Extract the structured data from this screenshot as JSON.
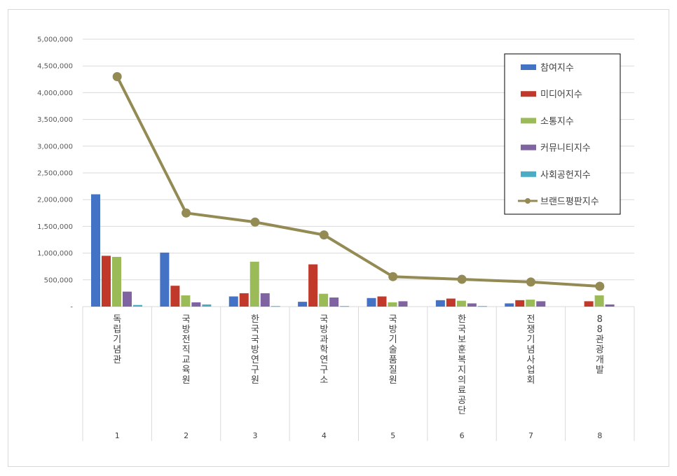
{
  "chart_data": {
    "type": "bar",
    "y_ticks": [
      "5,000,000",
      "4,500,000",
      "4,000,000",
      "3,500,000",
      "3,000,000",
      "2,500,000",
      "2,000,000",
      "1,500,000",
      "1,000,000",
      "500,000",
      "-"
    ],
    "ylim": [
      0,
      5000000
    ],
    "categories": [
      "독립기념관",
      "국방전직교육원",
      "한국국방연구원",
      "국방과학연구소",
      "국방기술품질원",
      "한국보훈복지의료공단",
      "전쟁기념사업회",
      "88관광개발"
    ],
    "category_numbers": [
      "1",
      "2",
      "3",
      "4",
      "5",
      "6",
      "7",
      "8"
    ],
    "series": [
      {
        "name": "참여지수",
        "type": "bar",
        "color": "#4472c4",
        "values": [
          2100000,
          1010000,
          190000,
          90000,
          160000,
          120000,
          60000,
          0
        ]
      },
      {
        "name": "미디어지수",
        "type": "bar",
        "color": "#c0392b",
        "values": [
          950000,
          390000,
          250000,
          790000,
          190000,
          150000,
          120000,
          100000
        ]
      },
      {
        "name": "소통지수",
        "type": "bar",
        "color": "#9bbb59",
        "values": [
          930000,
          210000,
          840000,
          240000,
          80000,
          110000,
          130000,
          210000
        ]
      },
      {
        "name": "커뮤니티지수",
        "type": "bar",
        "color": "#8064a2",
        "values": [
          280000,
          80000,
          250000,
          170000,
          100000,
          60000,
          100000,
          40000
        ]
      },
      {
        "name": "사회공헌지수",
        "type": "bar",
        "color": "#4bacc6",
        "values": [
          30000,
          40000,
          10000,
          10000,
          0,
          10000,
          0,
          0
        ]
      },
      {
        "name": "브랜드평판지수",
        "type": "line",
        "color": "#948a54",
        "values": [
          4300000,
          1750000,
          1580000,
          1340000,
          560000,
          510000,
          460000,
          380000
        ]
      }
    ],
    "grid": true,
    "legend": "top-right"
  }
}
